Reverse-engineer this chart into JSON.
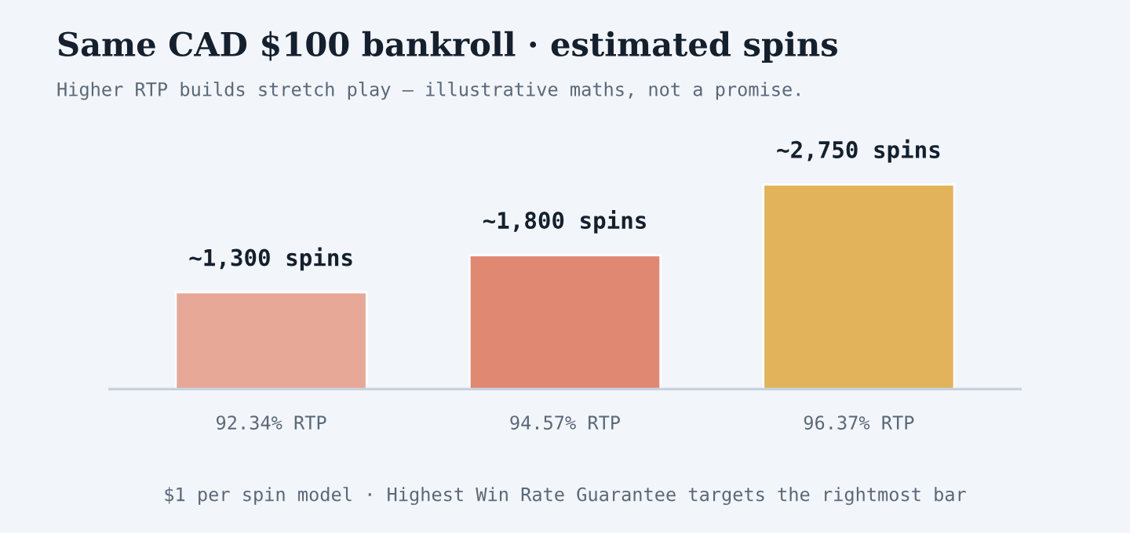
{
  "chart_data": {
    "type": "bar",
    "title": "Same CAD $100 bankroll · estimated spins",
    "subtitle": "Higher RTP builds stretch play — illustrative maths, not a promise.",
    "categories": [
      "92.34% RTP",
      "94.57% RTP",
      "96.37% RTP"
    ],
    "values": [
      1300,
      1800,
      2750
    ],
    "colors": [
      "#e8a898",
      "#e08872",
      "#e2b35a"
    ],
    "value_labels": [
      "~1,300 spins",
      "~1,800 spins",
      "~2,750 spins"
    ],
    "annotations": [
      "$1 per spin model · Highest Win Rate Guarantee targets the rightmost bar"
    ],
    "grid": false,
    "legend": false
  }
}
